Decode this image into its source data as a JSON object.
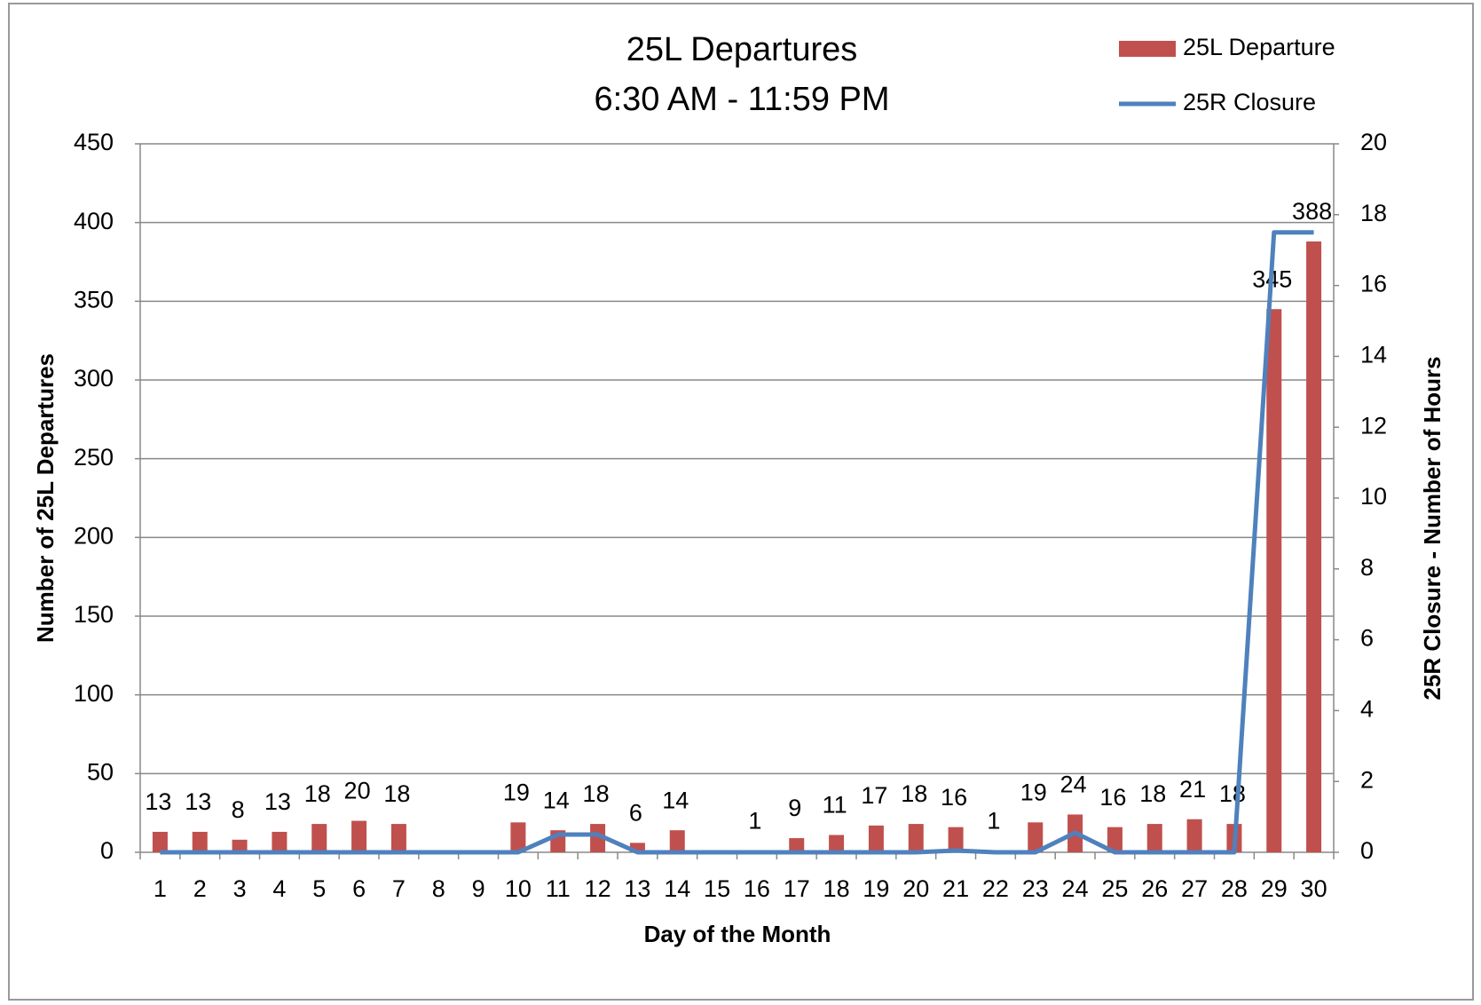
{
  "chart_data": {
    "type": "bar",
    "title": "25L Departures",
    "subtitle": "6:30 AM - 11:59 PM",
    "x_label": "Day of the Month",
    "y_label": "Number of 25L Departures",
    "y2_label": "25R Closure - Number of Hours",
    "categories": [
      "1",
      "2",
      "3",
      "4",
      "5",
      "6",
      "7",
      "8",
      "9",
      "10",
      "11",
      "12",
      "13",
      "14",
      "15",
      "16",
      "17",
      "18",
      "19",
      "20",
      "21",
      "22",
      "23",
      "24",
      "25",
      "26",
      "27",
      "28",
      "29",
      "30"
    ],
    "series": [
      {
        "name": "25L Departure",
        "type": "bar",
        "color": "#c0504d",
        "values": [
          13,
          13,
          8,
          13,
          18,
          20,
          18,
          null,
          null,
          19,
          14,
          18,
          6,
          14,
          null,
          1,
          9,
          11,
          17,
          18,
          16,
          1,
          19,
          24,
          16,
          18,
          21,
          18,
          345,
          388
        ]
      },
      {
        "name": "25R Closure",
        "type": "line",
        "axis": "y2",
        "color": "#4f81bd",
        "values": [
          0,
          0,
          0,
          0,
          0,
          0,
          0,
          0,
          0,
          0,
          0.5,
          0.5,
          0,
          0,
          0,
          0,
          0,
          0,
          0,
          0,
          0.05,
          0,
          0,
          0.55,
          0,
          0,
          0,
          0,
          17.5,
          17.5
        ]
      }
    ],
    "ylim": [
      0,
      450
    ],
    "yticks": [
      0,
      50,
      100,
      150,
      200,
      250,
      300,
      350,
      400,
      450
    ],
    "y2lim": [
      0,
      20
    ],
    "y2ticks": [
      0,
      2,
      4,
      6,
      8,
      10,
      12,
      14,
      16,
      18,
      20
    ],
    "grid": true,
    "legend": "top-right"
  }
}
